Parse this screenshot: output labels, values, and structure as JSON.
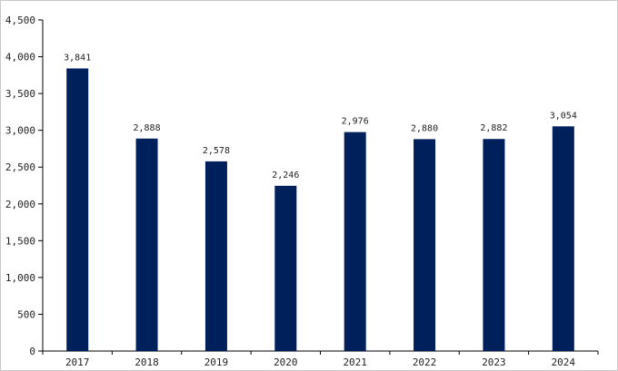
{
  "chart_data": {
    "type": "bar",
    "categories": [
      "2017",
      "2018",
      "2019",
      "2020",
      "2021",
      "2022",
      "2023",
      "2024"
    ],
    "values": [
      3841,
      2888,
      2578,
      2246,
      2976,
      2880,
      2882,
      3054
    ],
    "value_labels": [
      "3,841",
      "2,888",
      "2,578",
      "2,246",
      "2,976",
      "2,880",
      "2,882",
      "3,054"
    ],
    "yticks": [
      0,
      500,
      1000,
      1500,
      2000,
      2500,
      3000,
      3500,
      4000,
      4500
    ],
    "ytick_labels": [
      "0",
      "500",
      "1,000",
      "1,500",
      "2,000",
      "2,500",
      "3,000",
      "3,500",
      "4,000",
      "4,500"
    ],
    "ylim": [
      0,
      4500
    ],
    "title": "",
    "xlabel": "",
    "ylabel": "",
    "grid": false,
    "legend": "none",
    "bar_color": "#00205b",
    "axis_color": "#000000"
  }
}
